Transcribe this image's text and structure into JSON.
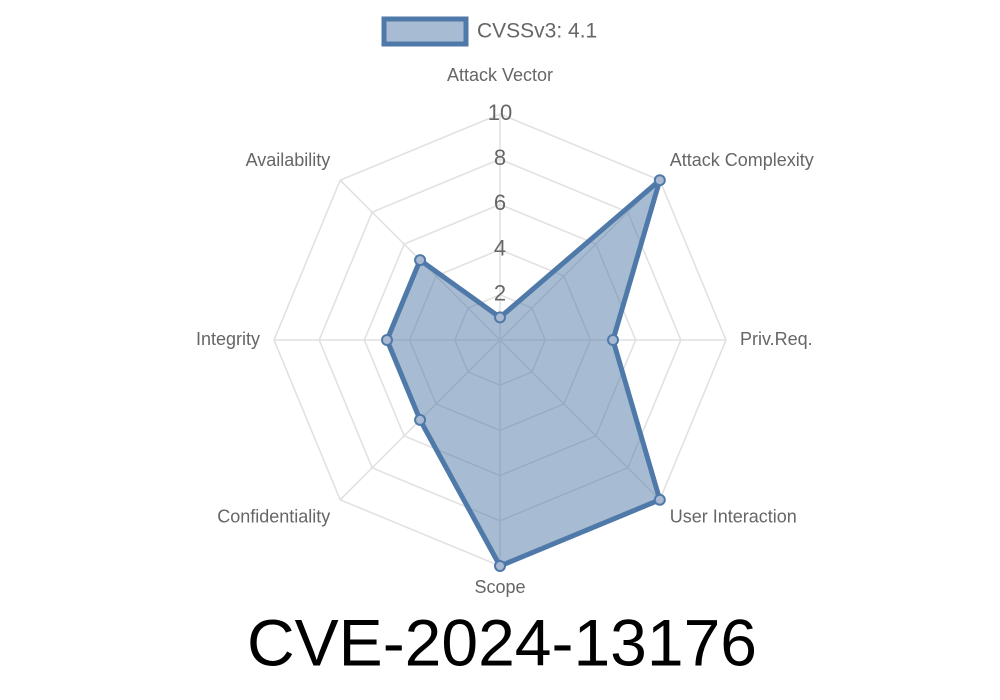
{
  "chart_data": {
    "type": "radar",
    "title": "CVE-2024-13176",
    "categories": [
      "Attack Vector",
      "Attack Complexity",
      "Priv.Req.",
      "User Interaction",
      "Scope",
      "Confidentiality",
      "Integrity",
      "Availability"
    ],
    "series": [
      {
        "name": "CVSSv3: 4.1",
        "color": "#4f79a8",
        "values": [
          1,
          10,
          5,
          10,
          10,
          5,
          5,
          5
        ]
      }
    ],
    "rlim": [
      0,
      10
    ],
    "rticks": [
      2,
      4,
      6,
      8,
      10
    ],
    "grid": true,
    "legend": "top"
  }
}
